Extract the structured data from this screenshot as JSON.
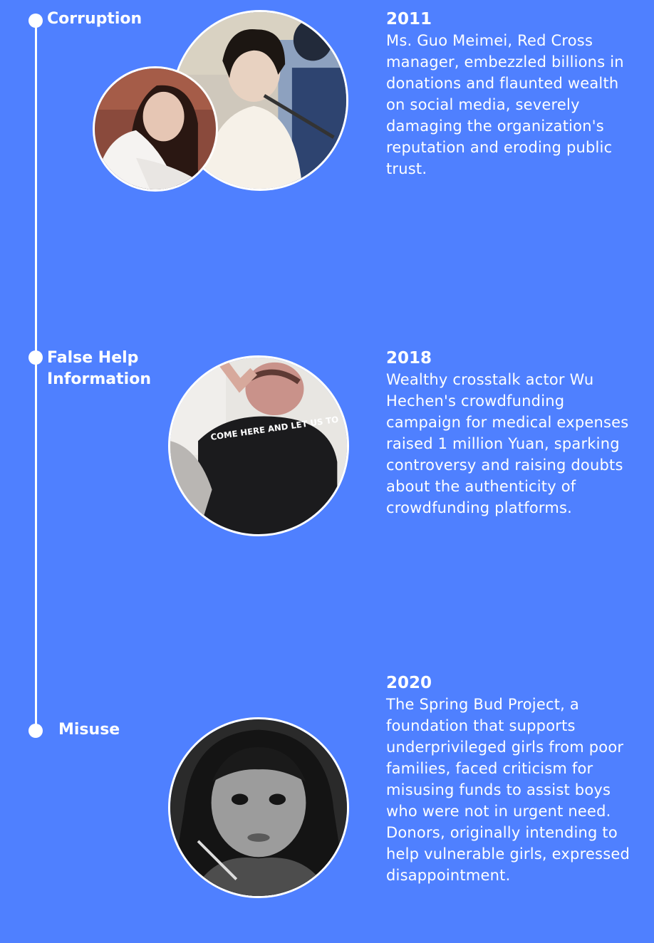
{
  "timeline": {
    "events": [
      {
        "category": "Corruption",
        "year": "2011",
        "description": "Ms. Guo Meimei, Red Cross manager, embezzled billions in donations and flaunted wealth on social media, severely damaging the organization's reputation and eroding public trust.",
        "photos": [
          "courtroom-woman-with-glasses-photo",
          "woman-in-white-fur-photo"
        ]
      },
      {
        "category_lines": [
          "False Help",
          "Information"
        ],
        "year": "2018",
        "description": "Wealthy crosstalk actor Wu Hechen's crowdfunding campaign for medical expenses raised 1 million Yuan, sparking controversy and raising doubts about the authenticity of crowdfunding platforms.",
        "photos": [
          "man-in-black-tshirt-photo"
        ],
        "shirt_text": "COME HERE AND LET US TO"
      },
      {
        "category": "Misuse",
        "year": "2020",
        "description": "The Spring Bud Project, a foundation that supports underprivileged girls from poor families, faced criticism for misusing funds to assist boys who were not in urgent need. Donors, originally intending to help vulnerable girls, expressed disappointment.",
        "photos": [
          "black-and-white-girl-photo"
        ]
      }
    ]
  },
  "colors": {
    "background": "#4f80ff",
    "accent": "#ffffff"
  }
}
